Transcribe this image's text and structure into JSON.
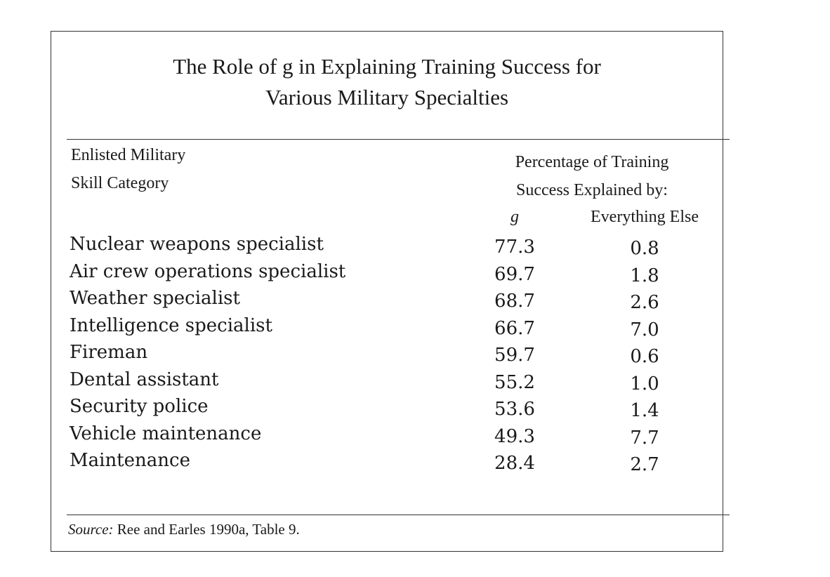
{
  "table": {
    "title_line1": "The Role of g in Explaining Training Success for",
    "title_line2": "Various Military Specialties",
    "col1_header_line1": "Enlisted Military",
    "col1_header_line2": "Skill Category",
    "col_group_header_line1": "Percentage of Training",
    "col_group_header_line2": "Success Explained by:",
    "col_g_header": "g",
    "col_else_header": "Everything Else",
    "rows": [
      {
        "category": "Nuclear weapons specialist",
        "g": "77.3",
        "else": "0.8"
      },
      {
        "category": "Air crew operations specialist",
        "g": "69.7",
        "else": "1.8"
      },
      {
        "category": "Weather specialist",
        "g": "68.7",
        "else": "2.6"
      },
      {
        "category": "Intelligence specialist",
        "g": "66.7",
        "else": "7.0"
      },
      {
        "category": "Fireman",
        "g": "59.7",
        "else": "0.6"
      },
      {
        "category": "Dental assistant",
        "g": "55.2",
        "else": "1.0"
      },
      {
        "category": "Security police",
        "g": "53.6",
        "else": "1.4"
      },
      {
        "category": "Vehicle maintenance",
        "g": "49.3",
        "else": "7.7"
      },
      {
        "category": "Maintenance",
        "g": "28.4",
        "else": "2.7"
      }
    ],
    "source_label": "Source:",
    "source_text": " Ree and Earles 1990a, Table 9."
  }
}
